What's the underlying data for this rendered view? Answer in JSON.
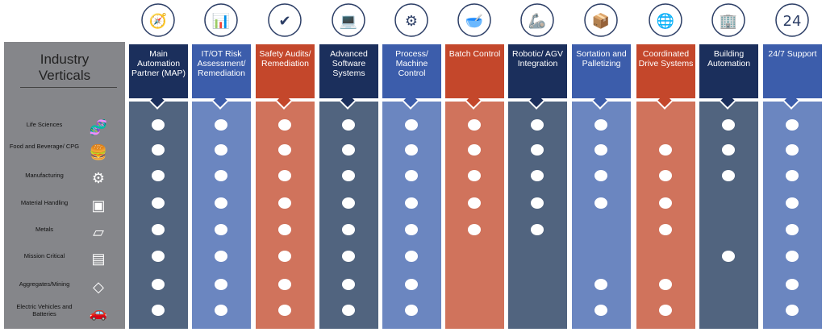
{
  "panel": {
    "title_line1": "Industry",
    "title_line2": "Verticals"
  },
  "colors": {
    "navy_head": "#1b2f5c",
    "navy_body": "#51647f",
    "blue_head": "#3c5dab",
    "blue_body": "#6b86c0",
    "orange_head": "#c4472b",
    "orange_body": "#d0735c",
    "panel": "#85868a"
  },
  "rows": [
    {
      "label": "Life Sciences",
      "icon": "dna-icon"
    },
    {
      "label": "Food and Beverage/ CPG",
      "icon": "food-drink-icon"
    },
    {
      "label": "Manufacturing",
      "icon": "machine-gear-icon"
    },
    {
      "label": "Material Handling",
      "icon": "box-icon"
    },
    {
      "label": "Metals",
      "icon": "metal-beams-icon"
    },
    {
      "label": "Mission Critical",
      "icon": "server-icon"
    },
    {
      "label": "Aggregates/Mining",
      "icon": "diamond-icon"
    },
    {
      "label": "Electric Vehicles and Batteries",
      "icon": "car-icon"
    }
  ],
  "columns": [
    {
      "label": "Main Automation Partner (MAP)",
      "icon": "compass-icon",
      "theme": "navy",
      "checks": [
        1,
        1,
        1,
        1,
        1,
        1,
        1,
        1
      ]
    },
    {
      "label": "IT/OT Risk Assessment/ Remediation",
      "icon": "report-gear-icon",
      "theme": "blue",
      "checks": [
        1,
        1,
        1,
        1,
        1,
        1,
        1,
        1
      ]
    },
    {
      "label": "Safety Audits/ Remediation",
      "icon": "shield-check-icon",
      "theme": "orange",
      "checks": [
        1,
        1,
        1,
        1,
        1,
        1,
        1,
        1
      ]
    },
    {
      "label": "Advanced Software Systems",
      "icon": "laptop-send-icon",
      "theme": "navy",
      "checks": [
        1,
        1,
        1,
        1,
        1,
        1,
        1,
        1
      ]
    },
    {
      "label": "Process/ Machine Control",
      "icon": "gear-cycle-icon",
      "theme": "blue",
      "checks": [
        1,
        1,
        1,
        1,
        1,
        1,
        1,
        1
      ]
    },
    {
      "label": "Batch Control",
      "icon": "mixing-bowl-icon",
      "theme": "orange",
      "checks": [
        1,
        1,
        1,
        1,
        1,
        0,
        0,
        0
      ]
    },
    {
      "label": "Robotic/ AGV Integration",
      "icon": "robot-arm-icon",
      "theme": "navy",
      "checks": [
        1,
        1,
        1,
        1,
        1,
        0,
        0,
        0
      ]
    },
    {
      "label": "Sortation and Palletizing",
      "icon": "conveyor-icon",
      "theme": "blue",
      "checks": [
        1,
        1,
        1,
        1,
        0,
        0,
        1,
        1
      ]
    },
    {
      "label": "Coordinated Drive Systems",
      "icon": "globe-network-icon",
      "theme": "orange",
      "checks": [
        0,
        1,
        1,
        1,
        1,
        0,
        1,
        1
      ]
    },
    {
      "label": "Building Automation",
      "icon": "smart-building-icon",
      "theme": "navy",
      "checks": [
        1,
        1,
        1,
        0,
        0,
        1,
        0,
        0
      ]
    },
    {
      "label": "24/7 Support",
      "icon": "phone-24-icon",
      "theme": "blue",
      "checks": [
        1,
        1,
        1,
        1,
        1,
        1,
        1,
        1
      ]
    }
  ],
  "support_icon_text": "24"
}
